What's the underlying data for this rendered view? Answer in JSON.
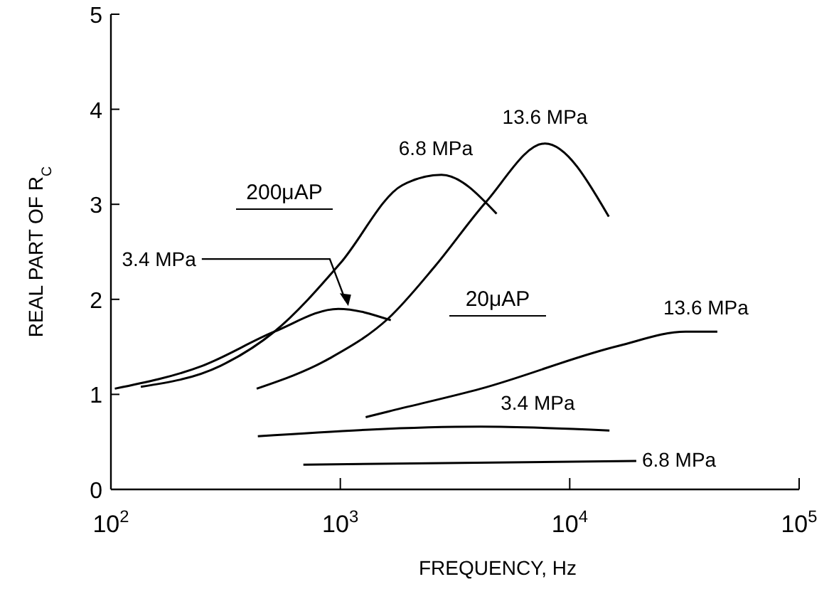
{
  "chart_data": {
    "type": "line",
    "xlabel": "FREQUENCY, Hz",
    "ylabel": "REAL PART OF R$_{C}$",
    "log": "x",
    "xlim": [
      100,
      100000
    ],
    "ylim": [
      0,
      5
    ],
    "xticks": [
      {
        "value": 100,
        "label": "10$^{2}$"
      },
      {
        "value": 1000,
        "label": "10$^{3}$"
      },
      {
        "value": 10000,
        "label": "10$^{4}$"
      },
      {
        "value": 100000,
        "label": "10$^{5}$"
      }
    ],
    "yticks": [
      0,
      1,
      2,
      3,
      4,
      5
    ],
    "grid": false,
    "marker": "none",
    "line_style": "solid",
    "annotations": [
      "200μAP",
      "20μAP"
    ],
    "series": [
      {
        "name": "3.4 MPa",
        "color": "#000000",
        "x": [
          104,
          250,
          516,
          980,
          1660
        ],
        "values": [
          1.06,
          1.3,
          1.66,
          1.9,
          1.78
        ]
      },
      {
        "name": "6.8 MPa",
        "color": "#000000",
        "x": [
          135,
          300,
          516,
          1000,
          1860,
          2760,
          4800
        ],
        "values": [
          1.08,
          1.3,
          1.66,
          2.38,
          3.2,
          3.31,
          2.9
        ]
      },
      {
        "name": "13.6 MPa",
        "color": "#000000",
        "x": [
          432,
          900,
          1620,
          2590,
          4300,
          7800,
          14800
        ],
        "values": [
          1.06,
          1.38,
          1.8,
          2.35,
          3.02,
          3.64,
          2.87
        ]
      },
      {
        "name": "13.6 MPa",
        "color": "#000000",
        "x": [
          1290,
          1620,
          4100,
          16300,
          32000,
          44000
        ],
        "values": [
          0.76,
          0.82,
          1.06,
          1.51,
          1.66,
          1.66
        ]
      },
      {
        "name": "3.4 MPa",
        "color": "#000000",
        "x": [
          437,
          4100,
          14900
        ],
        "values": [
          0.56,
          0.66,
          0.62
        ]
      },
      {
        "name": "6.8 MPa",
        "color": "#000000",
        "x": [
          690,
          19500
        ],
        "values": [
          0.26,
          0.3
        ]
      }
    ]
  }
}
